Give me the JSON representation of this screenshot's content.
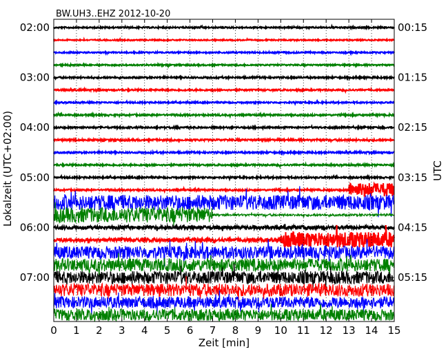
{
  "chart_data": {
    "type": "line",
    "title": "BW.UH3..EHZ 2012-10-20",
    "xlabel": "Zeit  [min]",
    "ylabel_left": "Lokalzeit (UTC+02:00)",
    "ylabel_right": "UTC",
    "xlim": [
      0,
      15
    ],
    "x_ticks": [
      0,
      1,
      2,
      3,
      4,
      5,
      6,
      7,
      8,
      9,
      10,
      11,
      12,
      13,
      14,
      15
    ],
    "x_tick_labels": [
      "0",
      "1",
      "2",
      "3",
      "4",
      "5",
      "6",
      "7",
      "8",
      "9",
      "10",
      "11",
      "12",
      "13",
      "14",
      "15"
    ],
    "grid": "vertical-dotted",
    "line_minutes": 15,
    "left_tick_labels": [
      {
        "row": 0,
        "label": "02:00"
      },
      {
        "row": 4,
        "label": "03:00"
      },
      {
        "row": 8,
        "label": "04:00"
      },
      {
        "row": 12,
        "label": "05:00"
      },
      {
        "row": 16,
        "label": "06:00"
      },
      {
        "row": 20,
        "label": "07:00"
      }
    ],
    "right_tick_labels": [
      {
        "row": 0,
        "label": "00:15"
      },
      {
        "row": 4,
        "label": "01:15"
      },
      {
        "row": 8,
        "label": "02:15"
      },
      {
        "row": 12,
        "label": "03:15"
      },
      {
        "row": 16,
        "label": "04:15"
      },
      {
        "row": 20,
        "label": "05:15"
      }
    ],
    "color_cycle": [
      "#000000",
      "#ff0000",
      "#0000ff",
      "#008000"
    ],
    "rows": [
      {
        "row": 0,
        "color": "#000000",
        "level": 0.12
      },
      {
        "row": 1,
        "color": "#ff0000",
        "level": 0.1
      },
      {
        "row": 2,
        "color": "#0000ff",
        "level": 0.12
      },
      {
        "row": 3,
        "color": "#008000",
        "level": 0.12
      },
      {
        "row": 4,
        "color": "#000000",
        "level": 0.14
      },
      {
        "row": 5,
        "color": "#ff0000",
        "level": 0.14
      },
      {
        "row": 6,
        "color": "#0000ff",
        "level": 0.12
      },
      {
        "row": 7,
        "color": "#008000",
        "level": 0.14
      },
      {
        "row": 8,
        "color": "#000000",
        "level": 0.14
      },
      {
        "row": 9,
        "color": "#ff0000",
        "level": 0.16
      },
      {
        "row": 10,
        "color": "#0000ff",
        "level": 0.14
      },
      {
        "row": 11,
        "color": "#008000",
        "level": 0.14
      },
      {
        "row": 12,
        "color": "#000000",
        "level": 0.14
      },
      {
        "row": 13,
        "color": "#ff0000",
        "level": 0.14,
        "burst": {
          "from": 13.0,
          "to": 15.0,
          "level": 1.2
        }
      },
      {
        "row": 14,
        "color": "#0000ff",
        "level": 1.3
      },
      {
        "row": 15,
        "color": "#008000",
        "level": 1.3,
        "quiet_after": 7.0,
        "quiet_level": 0.2
      },
      {
        "row": 16,
        "color": "#000000",
        "level": 0.28
      },
      {
        "row": 17,
        "color": "#ff0000",
        "level": 0.3,
        "burst": {
          "from": 10.0,
          "to": 15.0,
          "level": 1.35
        }
      },
      {
        "row": 18,
        "color": "#0000ff",
        "level": 1.1
      },
      {
        "row": 19,
        "color": "#008000",
        "level": 1.1
      },
      {
        "row": 20,
        "color": "#000000",
        "level": 1.1
      },
      {
        "row": 21,
        "color": "#ff0000",
        "level": 1.1
      },
      {
        "row": 22,
        "color": "#0000ff",
        "level": 1.0
      },
      {
        "row": 23,
        "color": "#008000",
        "level": 1.0
      }
    ]
  }
}
